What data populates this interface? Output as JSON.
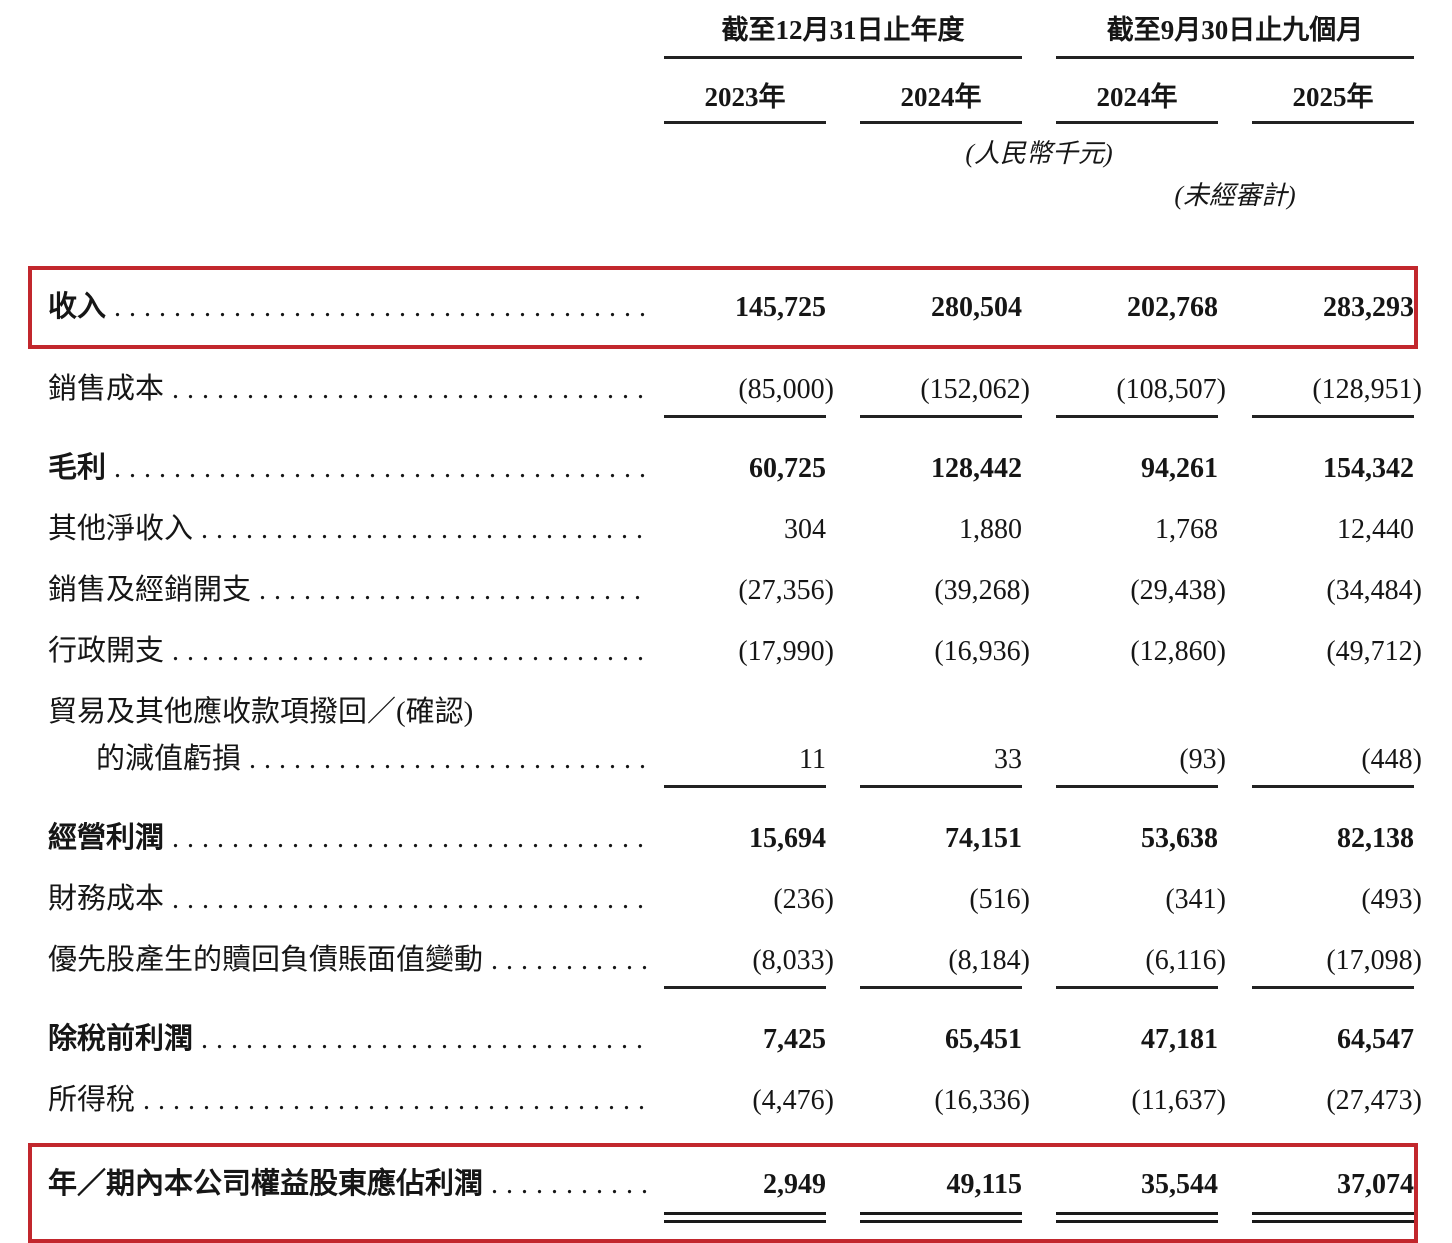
{
  "meta": {
    "accent_red": "#c2272d",
    "text_color": "#161616"
  },
  "header": {
    "groups": [
      {
        "title": "截至12月31日止年度",
        "years": [
          "2023年",
          "2024年"
        ]
      },
      {
        "title": "截至9月30日止九個月",
        "years": [
          "2024年",
          "2025年"
        ]
      }
    ],
    "currency_note": "(人民幣千元)",
    "audit_note": "(未經審計)"
  },
  "rows": [
    {
      "label": "收入",
      "values": [
        "145,725",
        "280,504",
        "202,768",
        "283,293"
      ],
      "bold": true,
      "highlight": true
    },
    {
      "label": "銷售成本",
      "values": [
        "(85,000)",
        "(152,062)",
        "(108,507)",
        "(128,951)"
      ],
      "rule_below": true
    },
    {
      "label": "毛利",
      "values": [
        "60,725",
        "128,442",
        "94,261",
        "154,342"
      ],
      "bold": true
    },
    {
      "label": "其他淨收入",
      "values": [
        "304",
        "1,880",
        "1,768",
        "12,440"
      ]
    },
    {
      "label": "銷售及經銷開支",
      "values": [
        "(27,356)",
        "(39,268)",
        "(29,438)",
        "(34,484)"
      ]
    },
    {
      "label": "行政開支",
      "values": [
        "(17,990)",
        "(16,936)",
        "(12,860)",
        "(49,712)"
      ]
    },
    {
      "label_lines": [
        "貿易及其他應收款項撥回／(確認)",
        "的減值虧損"
      ],
      "values": [
        "11",
        "33",
        "(93)",
        "(448)"
      ],
      "rule_below": true
    },
    {
      "label": "經營利潤",
      "values": [
        "15,694",
        "74,151",
        "53,638",
        "82,138"
      ],
      "bold": true
    },
    {
      "label": "財務成本",
      "values": [
        "(236)",
        "(516)",
        "(341)",
        "(493)"
      ]
    },
    {
      "label": "優先股產生的贖回負債賬面值變動",
      "values": [
        "(8,033)",
        "(8,184)",
        "(6,116)",
        "(17,098)"
      ],
      "rule_below": true
    },
    {
      "label": "除稅前利潤",
      "values": [
        "7,425",
        "65,451",
        "47,181",
        "64,547"
      ],
      "bold": true
    },
    {
      "label": "所得稅",
      "values": [
        "(4,476)",
        "(16,336)",
        "(11,637)",
        "(27,473)"
      ]
    },
    {
      "label": "年／期內本公司權益股東應佔利潤",
      "values": [
        "2,949",
        "49,115",
        "35,544",
        "37,074"
      ],
      "bold": true,
      "highlight": true,
      "double_rule_below": true
    }
  ]
}
